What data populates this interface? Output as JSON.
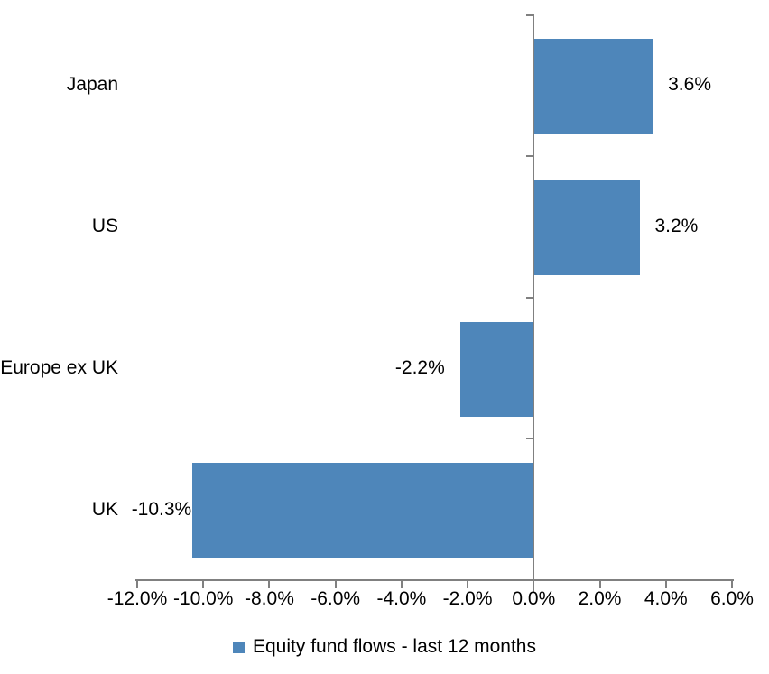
{
  "chart_data": {
    "type": "bar",
    "orientation": "horizontal",
    "title": "",
    "categories": [
      "Japan",
      "US",
      "Europe ex UK",
      "UK"
    ],
    "values": [
      3.6,
      3.2,
      -2.2,
      -10.3
    ],
    "value_labels": [
      "3.6%",
      "3.2%",
      "-2.2%",
      "-10.3%"
    ],
    "series": [
      {
        "name": "Equity fund flows - last 12 months",
        "values": [
          3.6,
          3.2,
          -2.2,
          -10.3
        ]
      }
    ],
    "legend": "Equity fund flows - last 12 months",
    "legend_position": "bottom",
    "grid": false,
    "x_axis": {
      "min": -12,
      "max": 6,
      "step": 2,
      "tick_labels": [
        "-12.0%",
        "-10.0%",
        "-8.0%",
        "-6.0%",
        "-4.0%",
        "-2.0%",
        "0.0%",
        "2.0%",
        "4.0%",
        "6.0%"
      ]
    },
    "colors": {
      "bar": "#4e86ba",
      "axis": "#808080",
      "text": "#000000",
      "background": "#ffffff"
    }
  }
}
